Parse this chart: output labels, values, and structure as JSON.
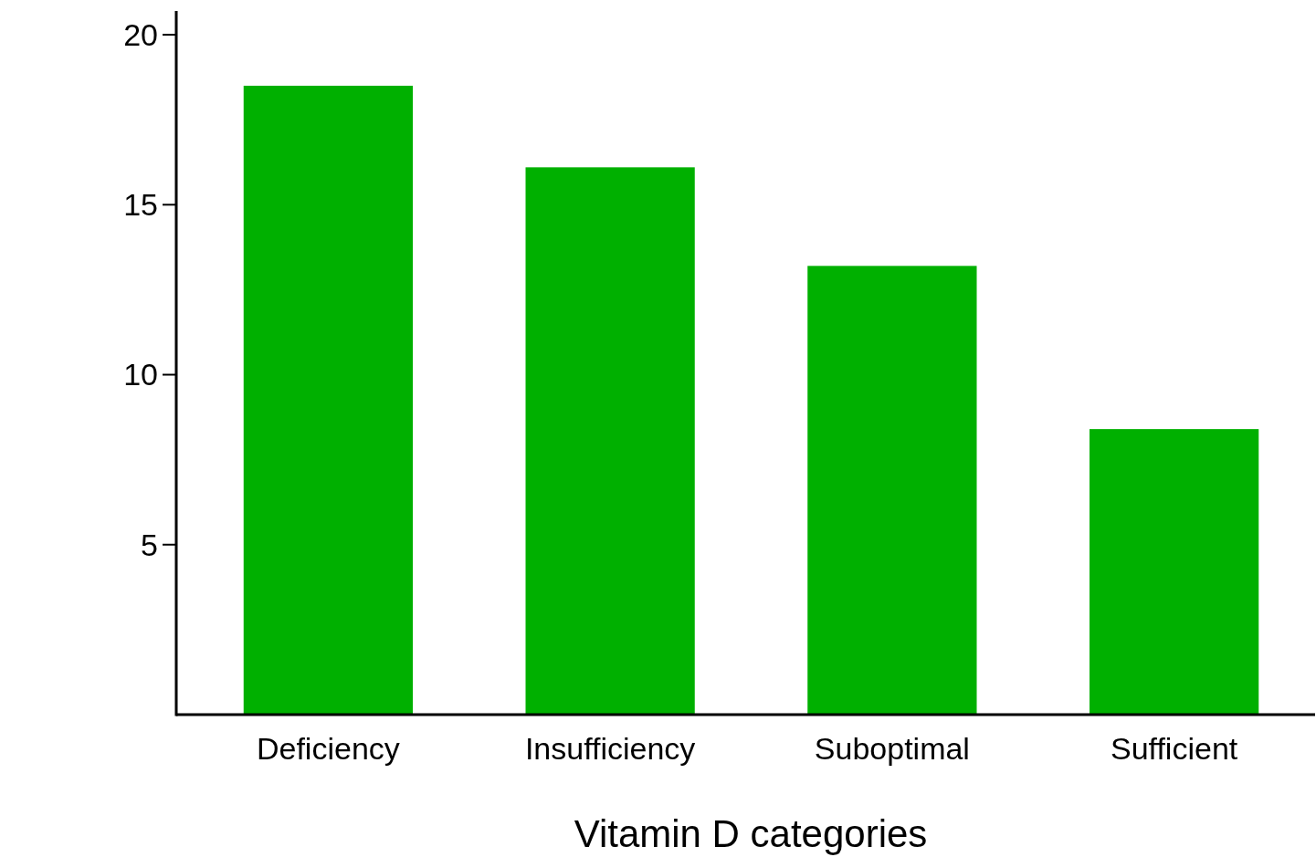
{
  "chart_data": {
    "type": "bar",
    "xlabel": "Vitamin D categories",
    "categories": [
      "Deficiency",
      "Insufficiency",
      "Suboptimal",
      "Sufficient"
    ],
    "values": [
      18.5,
      16.1,
      13.2,
      8.4
    ],
    "color": "#00b000",
    "ylim": [
      0,
      20.7
    ],
    "yticks": [
      5,
      10,
      15,
      20
    ],
    "grid": false
  }
}
